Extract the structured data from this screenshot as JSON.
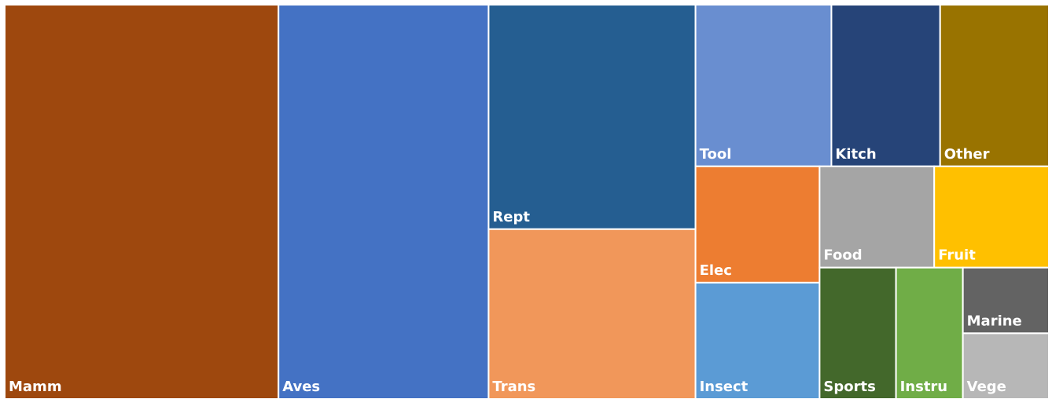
{
  "chart_data": {
    "type": "treemap",
    "categories": [
      "Mamm",
      "Aves",
      "Rept",
      "Trans",
      "Tool",
      "Kitch",
      "Other",
      "Elec",
      "Insect",
      "Food",
      "Fruit",
      "Sports",
      "Instru",
      "Marine",
      "Vege"
    ],
    "values": [
      172,
      132,
      74,
      56,
      35,
      28,
      28,
      23,
      23,
      18.5,
      18.5,
      16,
      14,
      9,
      9
    ],
    "colors": [
      "#9e480e",
      "#4472c4",
      "#255e91",
      "#f1975a",
      "#698ed0",
      "#264478",
      "#997300",
      "#ed7d31",
      "#5b9bd5",
      "#a5a5a5",
      "#ffc000",
      "#43682b",
      "#70ad47",
      "#636363",
      "#b7b7b7"
    ]
  }
}
